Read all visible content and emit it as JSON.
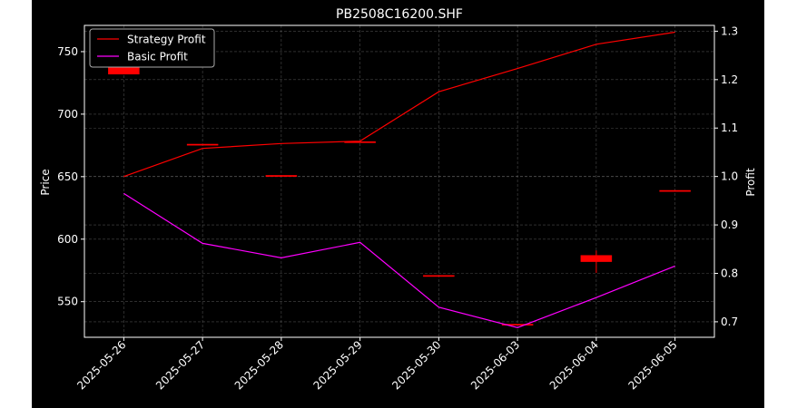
{
  "chart_data": {
    "type": "candlestick+line",
    "title": "PB2508C16200.SHF",
    "xlabel": "",
    "ylabel_left": "Price",
    "ylabel_right": "Profit",
    "categories": [
      "2025-05-26",
      "2025-05-27",
      "2025-05-28",
      "2025-05-29",
      "2025-05-30",
      "2025-06-03",
      "2025-06-04",
      "2025-06-05"
    ],
    "ylim_left": [
      521.5,
      771
    ],
    "yticks_left": [
      550,
      600,
      650,
      700,
      750
    ],
    "ylim_right": [
      0.668,
      1.312
    ],
    "yticks_right": [
      0.7,
      0.8,
      0.9,
      1.0,
      1.1,
      1.2,
      1.3
    ],
    "candles": [
      {
        "date": "2025-05-26",
        "open": 757,
        "close": 732,
        "high": 757,
        "low": 732
      },
      {
        "date": "2025-05-27",
        "open": 676,
        "close": 676,
        "high": 676,
        "low": 676
      },
      {
        "date": "2025-05-28",
        "open": 651,
        "close": 651,
        "high": 651,
        "low": 651
      },
      {
        "date": "2025-05-29",
        "open": 678,
        "close": 678,
        "high": 678,
        "low": 678
      },
      {
        "date": "2025-05-30",
        "open": 571,
        "close": 571,
        "high": 571,
        "low": 571
      },
      {
        "date": "2025-06-03",
        "open": 532,
        "close": 532,
        "high": 532,
        "low": 532
      },
      {
        "date": "2025-06-04",
        "open": 587,
        "close": 582,
        "high": 591,
        "low": 573
      },
      {
        "date": "2025-06-05",
        "open": 639,
        "close": 639,
        "high": 639,
        "low": 639
      }
    ],
    "series": [
      {
        "name": "Strategy Profit",
        "axis": "right",
        "color": "#ff0000",
        "values": [
          1.0,
          1.058,
          1.068,
          1.073,
          1.175,
          1.223,
          1.273,
          1.298
        ]
      },
      {
        "name": "Basic Profit",
        "axis": "right",
        "color": "#ff00ff",
        "values": [
          0.965,
          0.862,
          0.832,
          0.864,
          0.73,
          0.688,
          0.75,
          0.815
        ]
      }
    ],
    "candle_color": "#ff0000",
    "grid": true,
    "legend_position": "top-left",
    "background": "#000000",
    "foreground": "#ffffff"
  }
}
